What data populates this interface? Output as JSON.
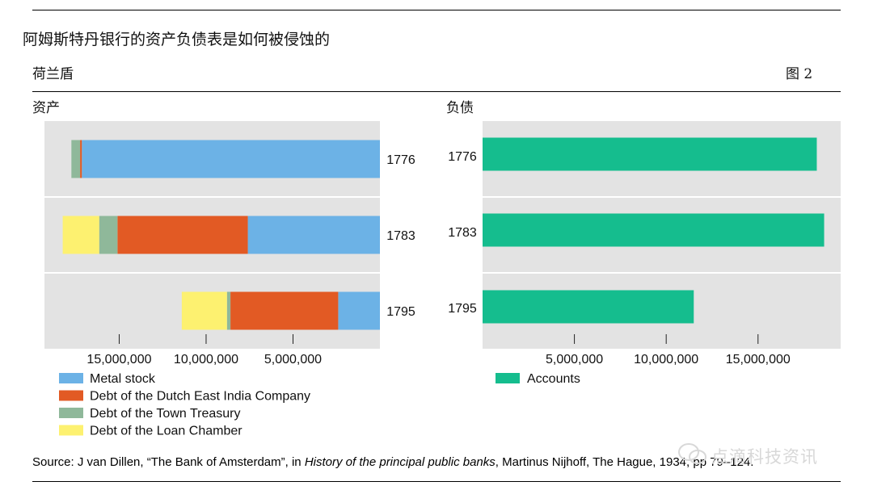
{
  "header": {
    "title": "阿姆斯特丹银行的资产负债表是如何被侵蚀的",
    "subtitle": "荷兰盾",
    "figure_label": "图  2"
  },
  "source": {
    "prefix": "Source: J van Dillen, “The Bank of Amsterdam”, in ",
    "book": "History of the principal public banks",
    "suffix": ", Martinus Nijhoff, The Hague, 1934, pp 79–124."
  },
  "watermark": {
    "text": "点滴科技资讯"
  },
  "colors": {
    "metal": "#6cb2e6",
    "veic": "#e25a24",
    "town": "#8fb89a",
    "loan": "#fdf170",
    "accounts": "#15bd8e",
    "panel_bg": "#e3e3e3"
  },
  "chart_data": [
    {
      "type": "bar",
      "orientation": "horizontal",
      "stacked": true,
      "title": "资产",
      "categories": [
        "1776",
        "1783",
        "1795"
      ],
      "series": [
        {
          "name": "Metal stock",
          "values": [
            17150000,
            7600000,
            2400000
          ]
        },
        {
          "name": "Debt of the Dutch East India Company",
          "values": [
            100000,
            7500000,
            6200000
          ]
        },
        {
          "name": "Debt of the Town Treasury",
          "values": [
            500000,
            1050000,
            200000
          ]
        },
        {
          "name": "Debt of the Loan Chamber",
          "values": [
            0,
            2100000,
            2600000
          ]
        }
      ],
      "tick_labels": [
        "15,000,000",
        "10,000,000",
        "5,000,000"
      ],
      "tick_values": [
        15000000,
        10000000,
        5000000
      ],
      "xlim": [
        0,
        19300000
      ],
      "x_reversed": true,
      "legend_position": "bottom-left",
      "grid": false
    },
    {
      "type": "bar",
      "orientation": "horizontal",
      "title": "负债",
      "categories": [
        "1776",
        "1783",
        "1795"
      ],
      "series": [
        {
          "name": "Accounts",
          "values": [
            18200000,
            18600000,
            11500000
          ]
        }
      ],
      "tick_labels": [
        "5,000,000",
        "10,000,000",
        "15,000,000"
      ],
      "tick_values": [
        5000000,
        10000000,
        15000000
      ],
      "xlim": [
        0,
        19500000
      ],
      "x_reversed": false,
      "legend_position": "bottom-left",
      "grid": false
    }
  ]
}
